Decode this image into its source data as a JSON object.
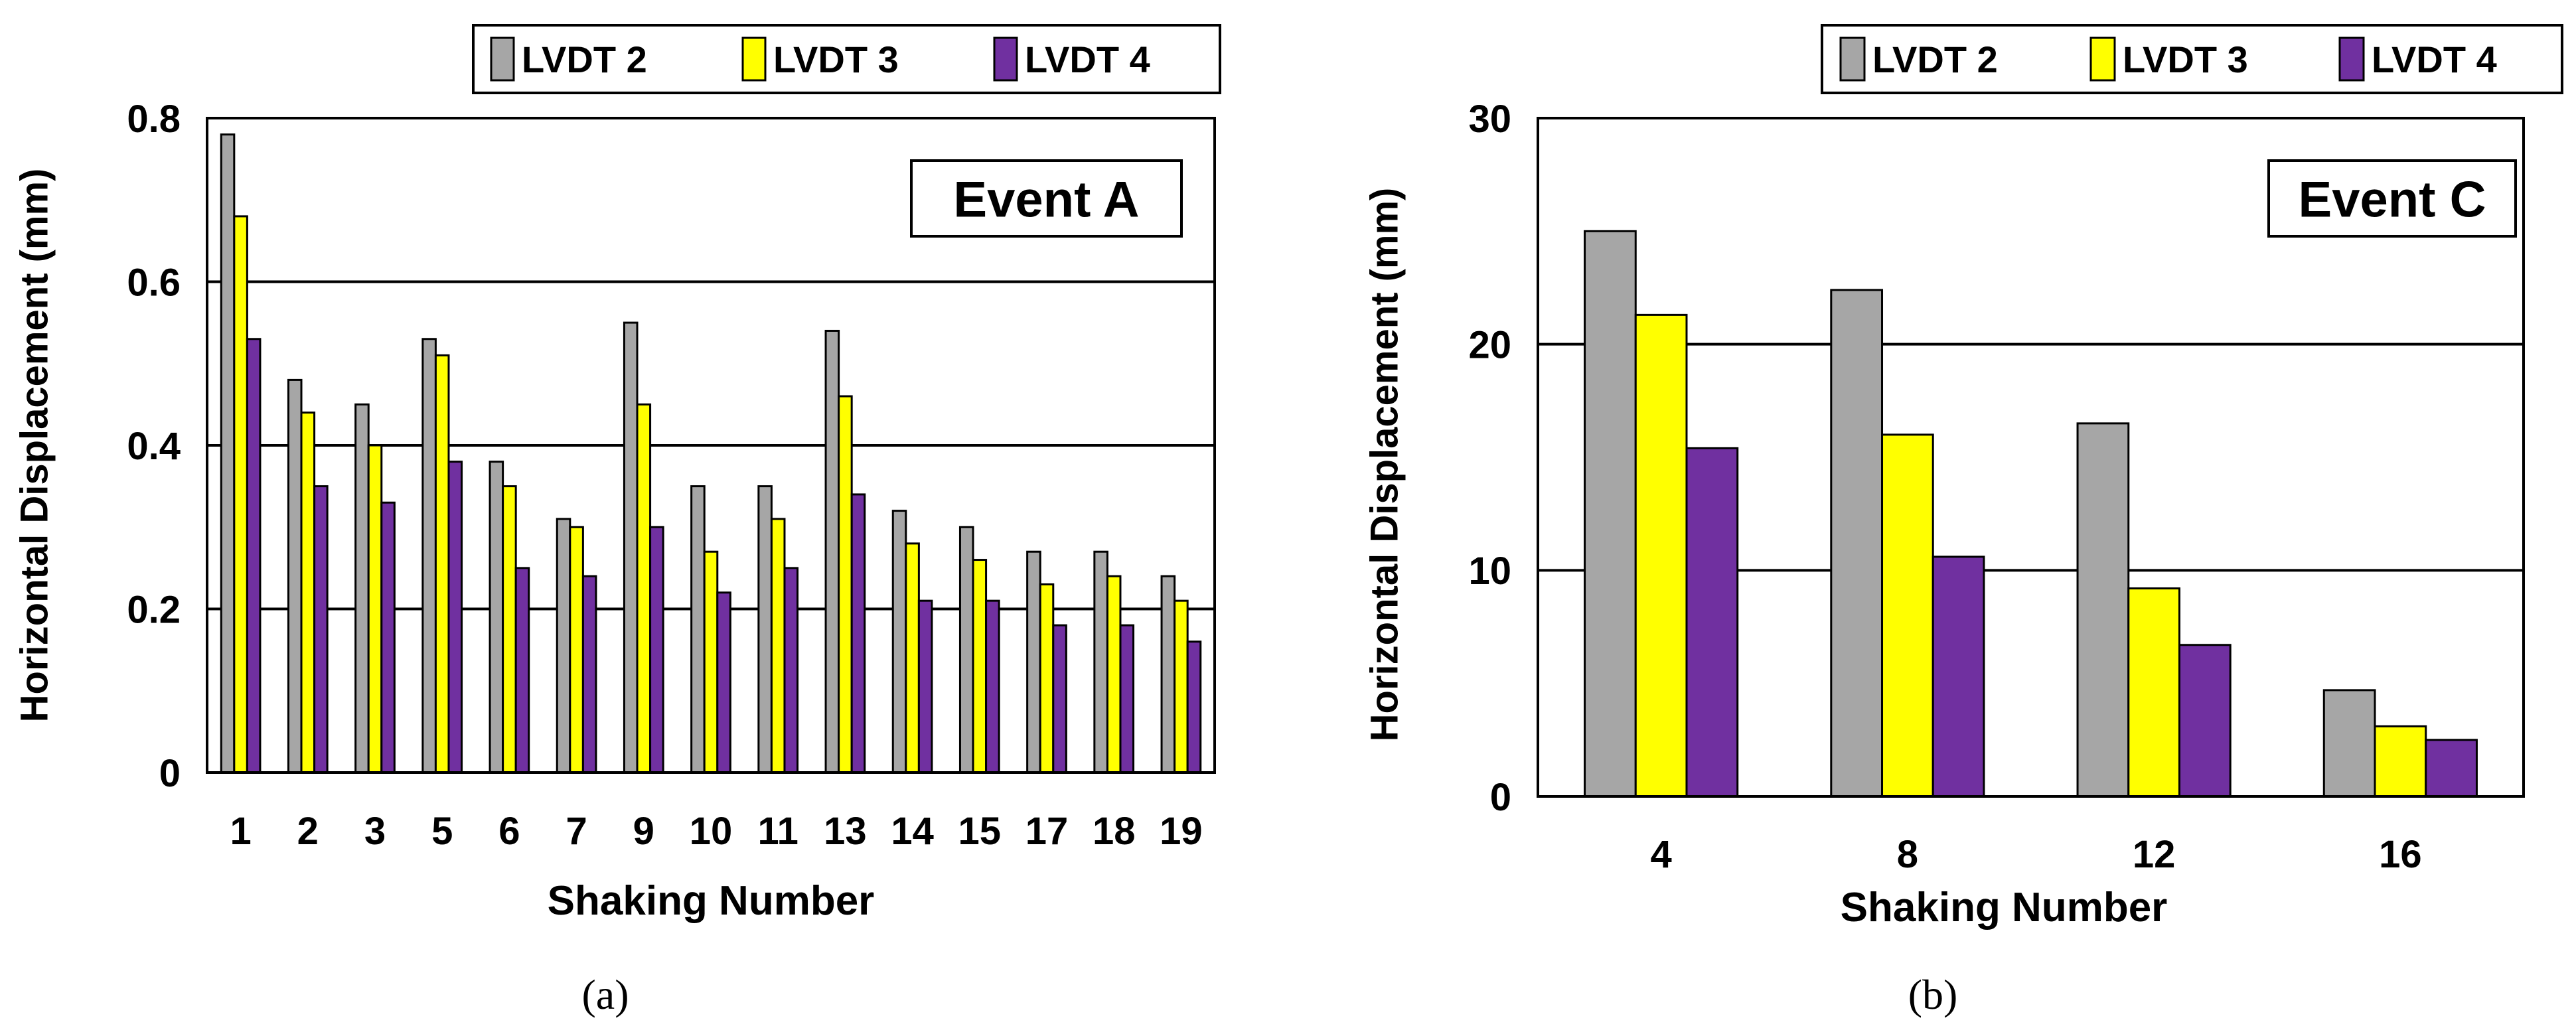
{
  "colors": {
    "series": [
      "#a6a6a6",
      "#ffff00",
      "#7030a0"
    ],
    "stroke": "#000000",
    "background": "#ffffff"
  },
  "chart_data": [
    {
      "type": "bar",
      "panel_label": "(a)",
      "annotation": "Event A",
      "xlabel": "Shaking Number",
      "ylabel": "Horizontal Displacement (mm)",
      "ylim": [
        0,
        0.8
      ],
      "yticks": [
        0,
        0.2,
        0.4,
        0.6,
        0.8
      ],
      "ytick_labels": [
        "0",
        "0.2",
        "0.4",
        "0.6",
        "0.8"
      ],
      "gridlines": [
        0.2,
        0.4,
        0.6,
        0.8
      ],
      "legend_position": "top-right",
      "categories": [
        "1",
        "2",
        "3",
        "5",
        "6",
        "7",
        "9",
        "10",
        "11",
        "13",
        "14",
        "15",
        "17",
        "18",
        "19"
      ],
      "series": [
        {
          "name": "LVDT 2",
          "values": [
            0.78,
            0.48,
            0.45,
            0.53,
            0.38,
            0.31,
            0.55,
            0.35,
            0.35,
            0.54,
            0.32,
            0.3,
            0.27,
            0.27,
            0.24
          ]
        },
        {
          "name": "LVDT 3",
          "values": [
            0.68,
            0.44,
            0.4,
            0.51,
            0.35,
            0.3,
            0.45,
            0.27,
            0.31,
            0.46,
            0.28,
            0.26,
            0.23,
            0.24,
            0.21
          ]
        },
        {
          "name": "LVDT 4",
          "values": [
            0.53,
            0.35,
            0.33,
            0.38,
            0.25,
            0.24,
            0.3,
            0.22,
            0.25,
            0.34,
            0.21,
            0.21,
            0.18,
            0.18,
            0.16
          ]
        }
      ]
    },
    {
      "type": "bar",
      "panel_label": "(b)",
      "annotation": "Event C",
      "xlabel": "Shaking Number",
      "ylabel": "Horizontal Displacement (mm)",
      "ylim": [
        0,
        30
      ],
      "yticks": [
        0,
        10,
        20,
        30
      ],
      "ytick_labels": [
        "0",
        "10",
        "20",
        "30"
      ],
      "gridlines": [
        10,
        20,
        30
      ],
      "legend_position": "top-right",
      "categories": [
        "4",
        "8",
        "12",
        "16"
      ],
      "series": [
        {
          "name": "LVDT 2",
          "values": [
            25.0,
            22.4,
            16.5,
            4.7
          ]
        },
        {
          "name": "LVDT 3",
          "values": [
            21.3,
            16.0,
            9.2,
            3.1
          ]
        },
        {
          "name": "LVDT 4",
          "values": [
            15.4,
            10.6,
            6.7,
            2.5
          ]
        }
      ]
    }
  ]
}
